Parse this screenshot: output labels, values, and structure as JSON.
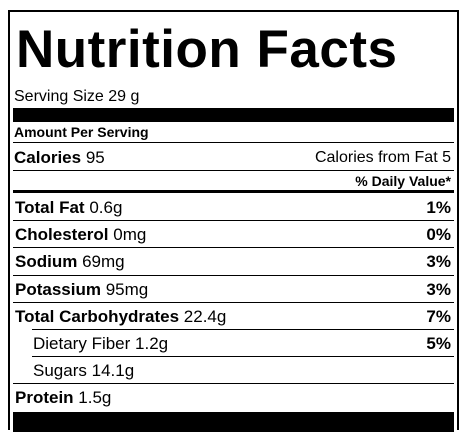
{
  "title": "Nutrition Facts",
  "serving_size": "Serving Size 29 g",
  "amount_per_serving": "Amount Per Serving",
  "calories": {
    "label": "Calories",
    "value": "95",
    "from_fat": "Calories from Fat 5"
  },
  "daily_value_header": "% Daily Value*",
  "rows": [
    {
      "name": "Total Fat",
      "amount": "0.6g",
      "percent": "1%"
    },
    {
      "name": "Cholesterol",
      "amount": "0mg",
      "percent": "0%"
    },
    {
      "name": "Sodium",
      "amount": "69mg",
      "percent": "3%"
    },
    {
      "name": "Potassium",
      "amount": "95mg",
      "percent": "3%"
    },
    {
      "name": "Total Carbohydrates",
      "amount": "22.4g",
      "percent": "7%"
    },
    {
      "name": "Dietary Fiber",
      "amount": "1.2g",
      "percent": "5%",
      "indent": true
    },
    {
      "name": "Sugars",
      "amount": "14.1g",
      "indent": true
    },
    {
      "name": "Protein",
      "amount": "1.5g"
    }
  ]
}
